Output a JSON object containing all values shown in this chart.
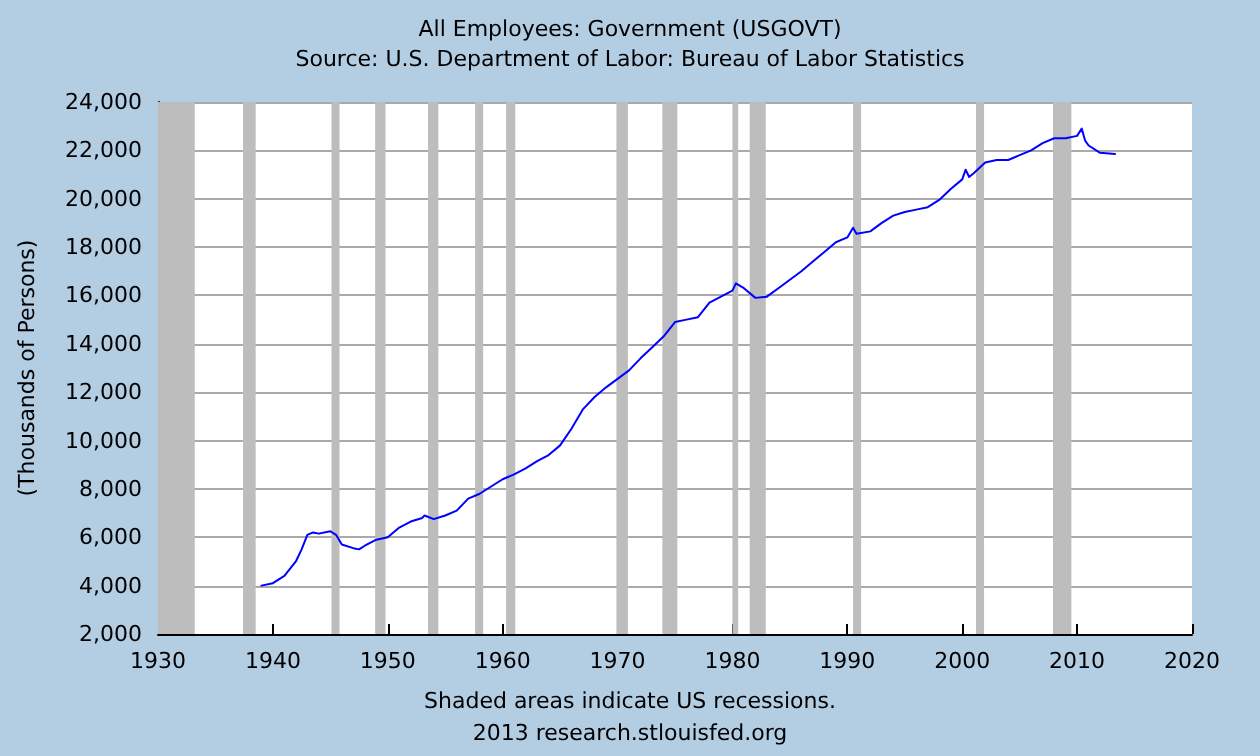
{
  "chart_data": {
    "type": "line",
    "title": "All Employees: Government (USGOVT)",
    "subtitle": "Source: U.S. Department of Labor: Bureau of Labor Statistics",
    "ylabel": "(Thousands of Persons)",
    "annotations": [
      "Shaded areas indicate US recessions.",
      "2013 research.stlouisfed.org"
    ],
    "x": [
      1939,
      1940,
      1941,
      1942,
      1942.5,
      1943,
      1943.5,
      1944,
      1945,
      1945.5,
      1946,
      1947,
      1947.5,
      1948,
      1949,
      1950,
      1951,
      1952,
      1953,
      1953.2,
      1954,
      1955,
      1956,
      1957,
      1958,
      1959,
      1960,
      1961,
      1962,
      1963,
      1964,
      1965,
      1966,
      1967,
      1968,
      1969,
      1970,
      1971,
      1972,
      1973,
      1974,
      1975,
      1976,
      1977,
      1978,
      1979,
      1980,
      1980.3,
      1981,
      1982,
      1983,
      1984,
      1985,
      1986,
      1987,
      1988,
      1989,
      1990,
      1990.5,
      1990.8,
      1992,
      1993,
      1994,
      1995,
      1996,
      1997,
      1998,
      1999,
      2000,
      2000.3,
      2000.6,
      2001,
      2002,
      2003,
      2004,
      2005,
      2006,
      2007,
      2008,
      2009,
      2010,
      2010.4,
      2010.7,
      2011,
      2012,
      2013.3
    ],
    "series": [
      {
        "color": "#0000ff",
        "values": [
          4000,
          4100,
          4400,
          5000,
          5500,
          6100,
          6200,
          6150,
          6250,
          6100,
          5700,
          5550,
          5500,
          5650,
          5900,
          6000,
          6400,
          6650,
          6800,
          6900,
          6750,
          6900,
          7100,
          7600,
          7800,
          8100,
          8400,
          8600,
          8850,
          9150,
          9400,
          9800,
          10500,
          11300,
          11800,
          12200,
          12550,
          12900,
          13400,
          13850,
          14300,
          14900,
          15000,
          15100,
          15700,
          15950,
          16200,
          16500,
          16300,
          15900,
          15950,
          16300,
          16650,
          17000,
          17400,
          17800,
          18200,
          18400,
          18800,
          18550,
          18650,
          19000,
          19300,
          19450,
          19550,
          19650,
          19950,
          20400,
          20800,
          21200,
          20900,
          21050,
          21500,
          21600,
          21600,
          21800,
          22000,
          22300,
          22500,
          22500,
          22600,
          22900,
          22400,
          22200,
          21900,
          21850
        ]
      }
    ],
    "xlim": [
      1930,
      2020
    ],
    "xticks": [
      1930,
      1940,
      1950,
      1960,
      1970,
      1980,
      1990,
      2000,
      2010,
      2020
    ],
    "ylim": [
      2000,
      24000
    ],
    "yticks": [
      {
        "value": 2000,
        "label": "2,000"
      },
      {
        "value": 4000,
        "label": "4,000"
      },
      {
        "value": 6000,
        "label": "6,000"
      },
      {
        "value": 8000,
        "label": "8,000"
      },
      {
        "value": 10000,
        "label": "10,000"
      },
      {
        "value": 12000,
        "label": "12,000"
      },
      {
        "value": 14000,
        "label": "14,000"
      },
      {
        "value": 16000,
        "label": "16,000"
      },
      {
        "value": 18000,
        "label": "18,000"
      },
      {
        "value": 20000,
        "label": "20,000"
      },
      {
        "value": 22000,
        "label": "22,000"
      },
      {
        "value": 24000,
        "label": "24,000"
      }
    ],
    "grid": "y",
    "marker": "none",
    "line_style": "solid",
    "bands": [
      {
        "axis": "x",
        "from": 1930,
        "to": 1933.2,
        "color": "#bdbdbd"
      },
      {
        "axis": "x",
        "from": 1937.4,
        "to": 1938.5,
        "color": "#bdbdbd"
      },
      {
        "axis": "x",
        "from": 1945.1,
        "to": 1945.8,
        "color": "#bdbdbd"
      },
      {
        "axis": "x",
        "from": 1948.9,
        "to": 1949.8,
        "color": "#bdbdbd"
      },
      {
        "axis": "x",
        "from": 1953.5,
        "to": 1954.4,
        "color": "#bdbdbd"
      },
      {
        "axis": "x",
        "from": 1957.6,
        "to": 1958.3,
        "color": "#bdbdbd"
      },
      {
        "axis": "x",
        "from": 1960.3,
        "to": 1961.1,
        "color": "#bdbdbd"
      },
      {
        "axis": "x",
        "from": 1969.9,
        "to": 1970.9,
        "color": "#bdbdbd"
      },
      {
        "axis": "x",
        "from": 1973.9,
        "to": 1975.2,
        "color": "#bdbdbd"
      },
      {
        "axis": "x",
        "from": 1980.0,
        "to": 1980.5,
        "color": "#bdbdbd"
      },
      {
        "axis": "x",
        "from": 1981.5,
        "to": 1982.9,
        "color": "#bdbdbd"
      },
      {
        "axis": "x",
        "from": 1990.5,
        "to": 1991.2,
        "color": "#bdbdbd"
      },
      {
        "axis": "x",
        "from": 2001.2,
        "to": 2001.9,
        "color": "#bdbdbd"
      },
      {
        "axis": "x",
        "from": 2007.9,
        "to": 2009.5,
        "color": "#bdbdbd"
      }
    ]
  }
}
